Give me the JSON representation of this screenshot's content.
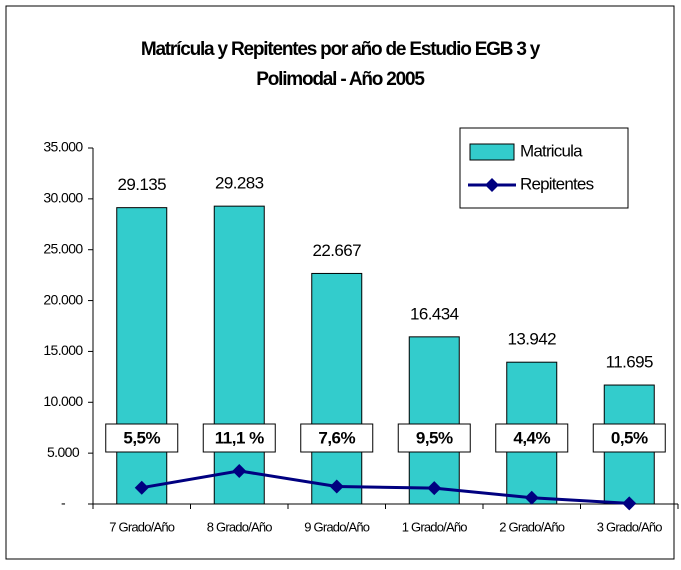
{
  "chart_data": {
    "type": "bar_line",
    "title_lines": [
      "Matrícula y Repitentes por año de Estudio EGB 3 y",
      "Polimodal - Año 2005"
    ],
    "categories": [
      "7 Grado/Año",
      "8 Grado/Año",
      "9 Grado/Año",
      "1 Grado/Año",
      "2 Grado/Año",
      "3 Grado/Año"
    ],
    "series": [
      {
        "name": "Matricula",
        "type": "bar",
        "color": "#33cccc",
        "values": [
          29135,
          29283,
          22667,
          16434,
          13942,
          11695
        ],
        "value_labels": [
          "29.135",
          "29.283",
          "22.667",
          "16.434",
          "13.942",
          "11.695"
        ]
      },
      {
        "name": "Repitentes",
        "type": "line",
        "color": "#000080",
        "values": [
          1602,
          3250,
          1723,
          1561,
          613,
          58
        ],
        "percent_labels": [
          "5,5%",
          "11,1 %",
          "7,6%",
          "9,5%",
          "4,4%",
          "0,5%"
        ]
      }
    ],
    "ylim": [
      0,
      35000
    ],
    "yticks": [
      {
        "value": 0,
        "label": "-"
      },
      {
        "value": 5000,
        "label": "5.000"
      },
      {
        "value": 10000,
        "label": "10.000"
      },
      {
        "value": 15000,
        "label": "15.000"
      },
      {
        "value": 20000,
        "label": "20.000"
      },
      {
        "value": 25000,
        "label": "25.000"
      },
      {
        "value": 30000,
        "label": "30.000"
      },
      {
        "value": 35000,
        "label": "35.000"
      }
    ],
    "legend": "top-right",
    "grid": false
  }
}
